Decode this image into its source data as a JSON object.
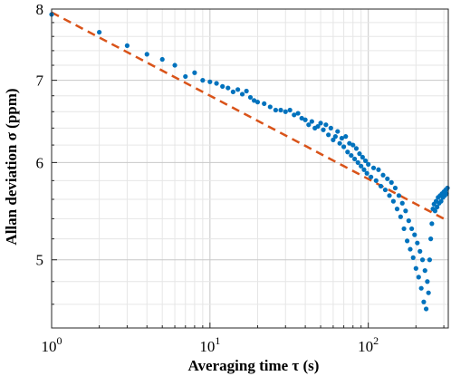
{
  "chart_data": {
    "type": "scatter",
    "xlabel": "Averaging time τ (s)",
    "ylabel": "Allan deviation σ  (ppm)",
    "xscale": "log",
    "yscale": "log",
    "xlim": [
      1,
      320
    ],
    "ylim": [
      4.4,
      8.0
    ],
    "grid": true,
    "legend": "none",
    "x_ticks": [
      {
        "value": 1,
        "base": "10",
        "exp": "0"
      },
      {
        "value": 10,
        "base": "10",
        "exp": "1"
      },
      {
        "value": 100,
        "base": "10",
        "exp": "2"
      }
    ],
    "y_ticks": [
      {
        "value": 5,
        "label": "5"
      },
      {
        "value": 6,
        "label": "6"
      },
      {
        "value": 7,
        "label": "7"
      },
      {
        "value": 8,
        "label": "8"
      }
    ],
    "series": [
      {
        "kind": "points",
        "color": "#0072BD",
        "points": [
          [
            1,
            7.92
          ],
          [
            2,
            7.66
          ],
          [
            3,
            7.47
          ],
          [
            4,
            7.35
          ],
          [
            5,
            7.28
          ],
          [
            6,
            7.2
          ],
          [
            7,
            7.05
          ],
          [
            8,
            7.1
          ],
          [
            9,
            7.0
          ],
          [
            10,
            6.98
          ],
          [
            11,
            6.96
          ],
          [
            12,
            6.92
          ],
          [
            13,
            6.9
          ],
          [
            14,
            6.85
          ],
          [
            15,
            6.88
          ],
          [
            16,
            6.82
          ],
          [
            17,
            6.86
          ],
          [
            18,
            6.78
          ],
          [
            19,
            6.74
          ],
          [
            20,
            6.72
          ],
          [
            22,
            6.7
          ],
          [
            24,
            6.66
          ],
          [
            26,
            6.62
          ],
          [
            28,
            6.62
          ],
          [
            30,
            6.6
          ],
          [
            32,
            6.62
          ],
          [
            34,
            6.56
          ],
          [
            36,
            6.58
          ],
          [
            38,
            6.52
          ],
          [
            40,
            6.5
          ],
          [
            42,
            6.44
          ],
          [
            44,
            6.48
          ],
          [
            46,
            6.4
          ],
          [
            48,
            6.42
          ],
          [
            50,
            6.46
          ],
          [
            52,
            6.38
          ],
          [
            54,
            6.44
          ],
          [
            56,
            6.32
          ],
          [
            58,
            6.4
          ],
          [
            60,
            6.26
          ],
          [
            62,
            6.3
          ],
          [
            64,
            6.36
          ],
          [
            66,
            6.22
          ],
          [
            68,
            6.28
          ],
          [
            70,
            6.18
          ],
          [
            72,
            6.3
          ],
          [
            74,
            6.12
          ],
          [
            76,
            6.22
          ],
          [
            78,
            6.08
          ],
          [
            80,
            6.2
          ],
          [
            82,
            6.04
          ],
          [
            84,
            6.16
          ],
          [
            86,
            6.0
          ],
          [
            88,
            6.1
          ],
          [
            90,
            5.96
          ],
          [
            92,
            6.06
          ],
          [
            94,
            5.92
          ],
          [
            96,
            6.02
          ],
          [
            98,
            5.88
          ],
          [
            100,
            5.98
          ],
          [
            104,
            5.84
          ],
          [
            108,
            5.94
          ],
          [
            112,
            5.8
          ],
          [
            116,
            5.92
          ],
          [
            120,
            5.74
          ],
          [
            124,
            5.86
          ],
          [
            128,
            5.7
          ],
          [
            132,
            5.82
          ],
          [
            136,
            5.64
          ],
          [
            140,
            5.78
          ],
          [
            144,
            5.58
          ],
          [
            148,
            5.72
          ],
          [
            152,
            5.5
          ],
          [
            156,
            5.64
          ],
          [
            160,
            5.42
          ],
          [
            164,
            5.56
          ],
          [
            168,
            5.3
          ],
          [
            172,
            5.48
          ],
          [
            176,
            5.18
          ],
          [
            180,
            5.38
          ],
          [
            184,
            5.1
          ],
          [
            188,
            5.3
          ],
          [
            192,
            5.02
          ],
          [
            196,
            5.24
          ],
          [
            200,
            4.92
          ],
          [
            204,
            5.16
          ],
          [
            208,
            4.84
          ],
          [
            212,
            5.08
          ],
          [
            216,
            4.74
          ],
          [
            220,
            5.0
          ],
          [
            224,
            4.62
          ],
          [
            228,
            4.9
          ],
          [
            232,
            4.56
          ],
          [
            236,
            4.8
          ],
          [
            240,
            4.7
          ],
          [
            244,
            5.0
          ],
          [
            248,
            5.2
          ],
          [
            252,
            5.35
          ],
          [
            256,
            5.5
          ],
          [
            260,
            5.55
          ],
          [
            264,
            5.48
          ],
          [
            268,
            5.58
          ],
          [
            272,
            5.52
          ],
          [
            276,
            5.62
          ],
          [
            280,
            5.56
          ],
          [
            284,
            5.64
          ],
          [
            288,
            5.58
          ],
          [
            292,
            5.66
          ],
          [
            296,
            5.62
          ],
          [
            300,
            5.68
          ],
          [
            304,
            5.64
          ],
          [
            308,
            5.7
          ],
          [
            312,
            5.66
          ],
          [
            316,
            5.72
          ]
        ]
      },
      {
        "kind": "fit-line",
        "color": "#D95319",
        "dash": true,
        "points": [
          [
            1,
            7.95
          ],
          [
            300,
            5.4
          ]
        ]
      }
    ]
  }
}
